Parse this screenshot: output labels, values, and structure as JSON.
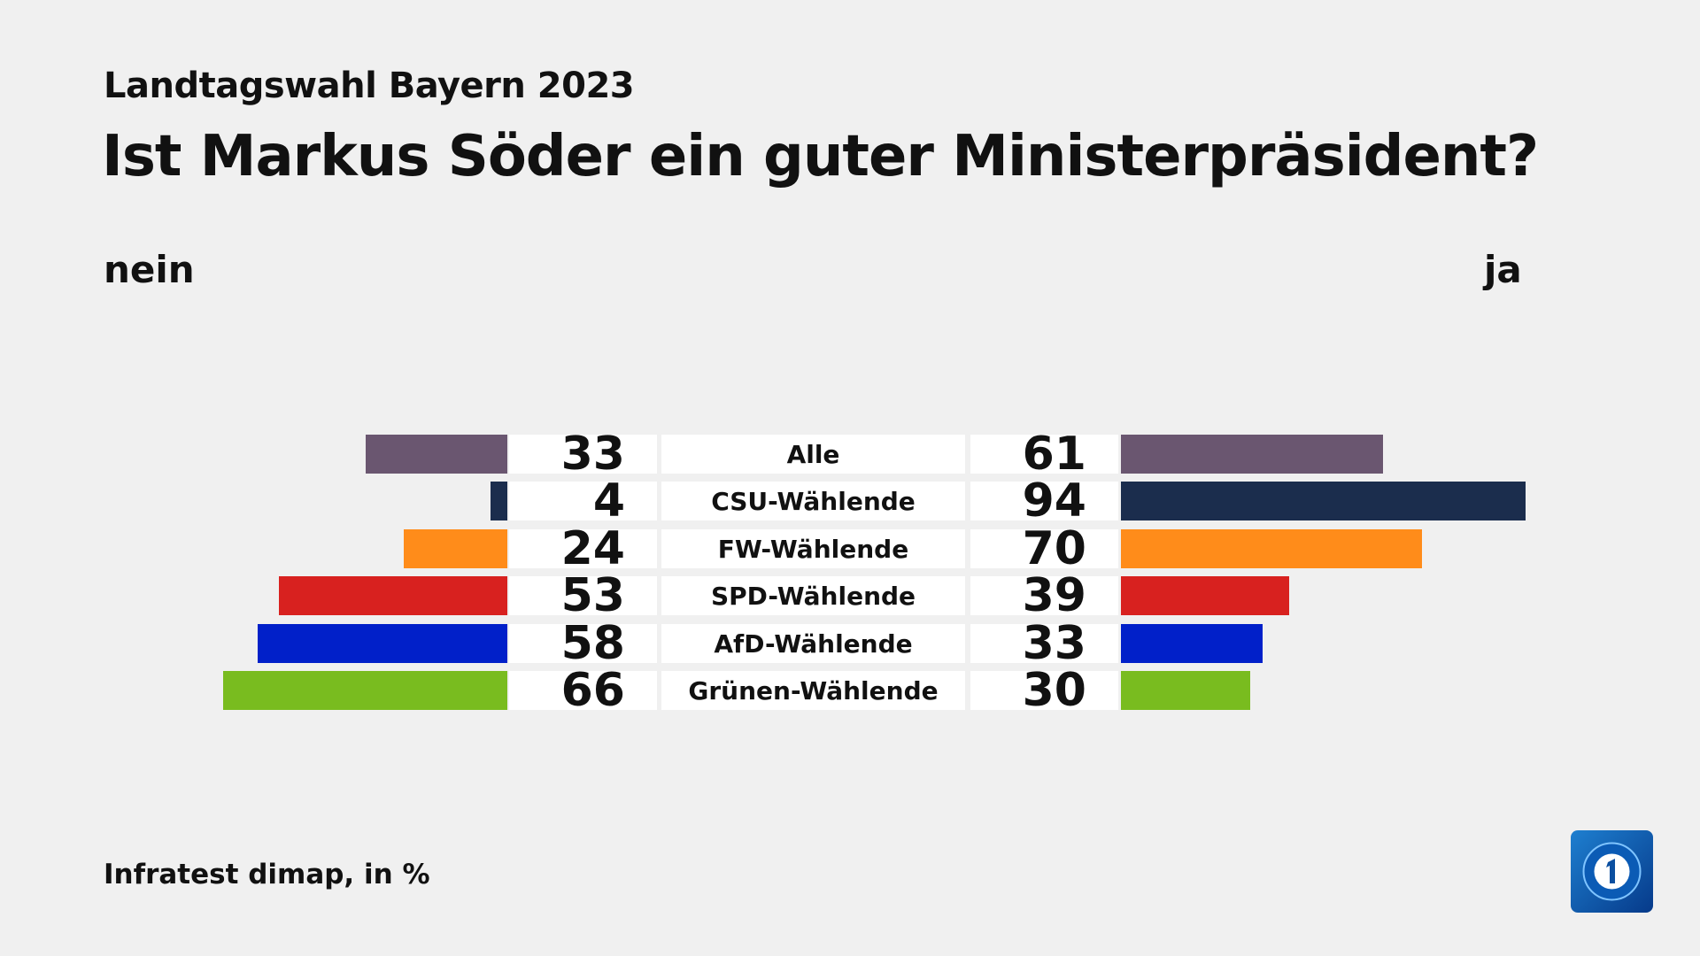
{
  "header": {
    "subtitle": "Landtagswahl Bayern 2023",
    "title": "Ist Markus Söder ein guter Ministerpräsident?"
  },
  "chart_data": {
    "type": "bar",
    "orientation": "diverging-horizontal",
    "left_label": "nein",
    "right_label": "ja",
    "categories": [
      "Alle",
      "CSU-Wählende",
      "FW-Wählende",
      "SPD-Wählende",
      "AfD-Wählende",
      "Grünen-Wählende"
    ],
    "series": [
      {
        "name": "nein",
        "values": [
          33,
          4,
          24,
          53,
          58,
          66
        ]
      },
      {
        "name": "ja",
        "values": [
          61,
          94,
          70,
          39,
          33,
          30
        ]
      }
    ],
    "colors": [
      "#6a5670",
      "#1b2d4d",
      "#ff8c1a",
      "#d8211f",
      "#0120c9",
      "#79bc1f"
    ],
    "unit": "%"
  },
  "footer": {
    "source": "Infratest dimap, in %"
  },
  "logo": {
    "text": "1"
  }
}
